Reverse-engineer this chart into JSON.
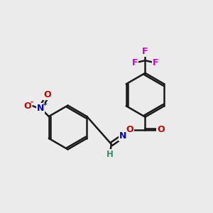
{
  "bg_color": "#ebebeb",
  "bond_color": "#1a1a1a",
  "bond_width": 1.8,
  "atom_colors": {
    "H": "#3a8a6a",
    "N_nitro": "#0000cc",
    "N_imine": "#0000cc",
    "O": "#cc0000",
    "F": "#cc00cc"
  },
  "font_size": 9,
  "figsize": [
    3.0,
    3.0
  ],
  "dpi": 100
}
